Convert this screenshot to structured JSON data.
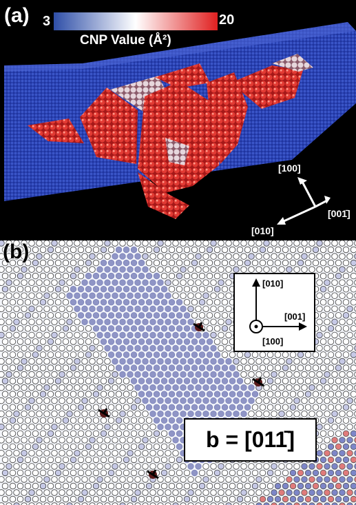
{
  "panel_a": {
    "letter": "(a)",
    "colorbar": {
      "min_label": "3",
      "max_label": "20",
      "title": "CNP Value (Å²)",
      "low_color": "#2f4fa8",
      "mid_color": "#ffffff",
      "high_color": "#e02020"
    },
    "axes": {
      "up": "[100]",
      "right": "[001̄]",
      "left": "[010]"
    }
  },
  "panel_b": {
    "letter": "(b)",
    "inset_axes": {
      "up": "[010]",
      "right": "[001]",
      "out_of_plane": "[100]"
    },
    "burgers_vector": "b = [011̄]"
  }
}
